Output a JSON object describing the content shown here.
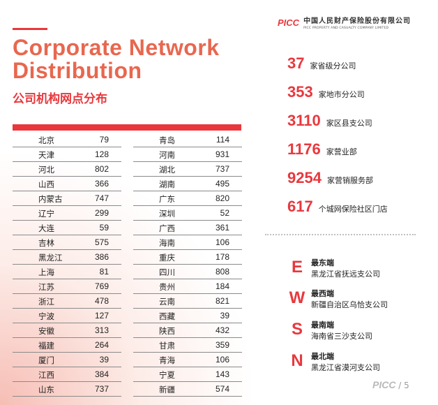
{
  "header": {
    "title_en_line1": "Corporate Network",
    "title_en_line2": "Distribution",
    "title_cn": "公司机构网点分布"
  },
  "logo": {
    "mark": "PICC",
    "name_cn": "中国人民财产保险股份有限公司",
    "name_en": "PICC PROPERTY AND CASUALTY COMPANY LIMITED"
  },
  "table": {
    "left": [
      {
        "name": "北京",
        "value": "79"
      },
      {
        "name": "天津",
        "value": "128"
      },
      {
        "name": "河北",
        "value": "802"
      },
      {
        "name": "山西",
        "value": "366"
      },
      {
        "name": "内蒙古",
        "value": "747"
      },
      {
        "name": "辽宁",
        "value": "299"
      },
      {
        "name": "大连",
        "value": "59"
      },
      {
        "name": "吉林",
        "value": "575"
      },
      {
        "name": "黑龙江",
        "value": "386"
      },
      {
        "name": "上海",
        "value": "81"
      },
      {
        "name": "江苏",
        "value": "769"
      },
      {
        "name": "浙江",
        "value": "478"
      },
      {
        "name": "宁波",
        "value": "127"
      },
      {
        "name": "安徽",
        "value": "313"
      },
      {
        "name": "福建",
        "value": "264"
      },
      {
        "name": "厦门",
        "value": "39"
      },
      {
        "name": "江西",
        "value": "384"
      },
      {
        "name": "山东",
        "value": "737"
      }
    ],
    "right": [
      {
        "name": "青岛",
        "value": "114"
      },
      {
        "name": "河南",
        "value": "931"
      },
      {
        "name": "湖北",
        "value": "737"
      },
      {
        "name": "湖南",
        "value": "495"
      },
      {
        "name": "广东",
        "value": "820"
      },
      {
        "name": "深圳",
        "value": "52"
      },
      {
        "name": "广西",
        "value": "361"
      },
      {
        "name": "海南",
        "value": "106"
      },
      {
        "name": "重庆",
        "value": "178"
      },
      {
        "name": "四川",
        "value": "808"
      },
      {
        "name": "贵州",
        "value": "184"
      },
      {
        "name": "云南",
        "value": "821"
      },
      {
        "name": "西藏",
        "value": "39"
      },
      {
        "name": "陕西",
        "value": "432"
      },
      {
        "name": "甘肃",
        "value": "359"
      },
      {
        "name": "青海",
        "value": "106"
      },
      {
        "name": "宁夏",
        "value": "143"
      },
      {
        "name": "新疆",
        "value": "574"
      }
    ]
  },
  "stats": [
    {
      "num": "37",
      "label": "家省级分公司"
    },
    {
      "num": "353",
      "label": "家地市分公司"
    },
    {
      "num": "3110",
      "label": "家区县支公司"
    },
    {
      "num": "1176",
      "label": "家营业部"
    },
    {
      "num": "9254",
      "label": "家营销服务部"
    },
    {
      "num": "617",
      "label": "个城网保险社区门店"
    }
  ],
  "extremes": [
    {
      "letter": "E",
      "title": "最东端",
      "place": "黑龙江省抚远支公司"
    },
    {
      "letter": "W",
      "title": "最西端",
      "place": "新疆自治区乌恰支公司"
    },
    {
      "letter": "S",
      "title": "最南端",
      "place": "海南省三沙支公司"
    },
    {
      "letter": "N",
      "title": "最北端",
      "place": "黑龙江省漠河支公司"
    }
  ],
  "footer": {
    "logo": "PICC",
    "page": "/ 5"
  },
  "colors": {
    "accent": "#e8383d",
    "title_accent": "#e8674f"
  }
}
